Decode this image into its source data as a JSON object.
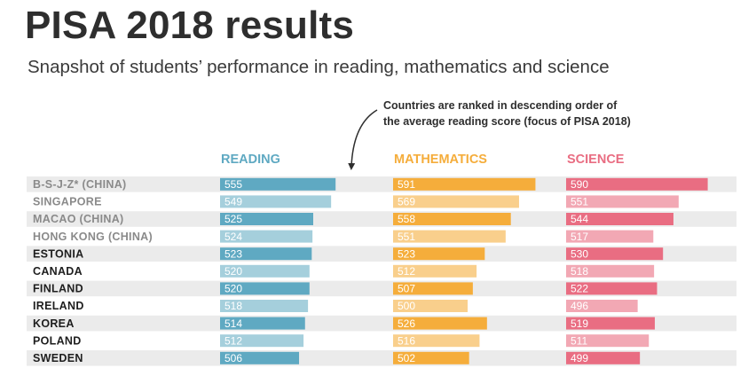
{
  "header": {
    "title": "PISA 2018 results",
    "subtitle": "Snapshot of students’ performance in reading, mathematics and science"
  },
  "annotation": {
    "line1": "Countries are ranked in descending order of",
    "line2": "the average reading score (focus of PISA 2018)"
  },
  "colors": {
    "reading": "#5fa9c2",
    "reading_light": "#a5cfdc",
    "mathematics": "#f5ad3b",
    "mathematics_light": "#f9cf8c",
    "science": "#e96d82",
    "science_light": "#f2a8b4",
    "country_dark": "#1e1e1e",
    "country_gray": "#8a8a8a",
    "row_band": "#ebebeb"
  },
  "chart_data": {
    "type": "bar",
    "orientation": "horizontal",
    "categories": [
      "B-S-J-Z* (CHINA)",
      "SINGAPORE",
      "MACAO (CHINA)",
      "HONG KONG (CHINA)",
      "ESTONIA",
      "CANADA",
      "FINLAND",
      "IRELAND",
      "KOREA",
      "POLAND",
      "SWEDEN"
    ],
    "category_style": [
      "gray",
      "gray",
      "gray",
      "gray",
      "dark",
      "dark",
      "dark",
      "dark",
      "dark",
      "dark",
      "dark"
    ],
    "series": [
      {
        "name": "READING",
        "values": [
          555,
          549,
          525,
          524,
          523,
          520,
          520,
          518,
          514,
          512,
          506
        ]
      },
      {
        "name": "MATHEMATICS",
        "values": [
          591,
          569,
          558,
          551,
          523,
          512,
          507,
          500,
          526,
          516,
          502
        ]
      },
      {
        "name": "SCIENCE",
        "values": [
          590,
          551,
          544,
          517,
          530,
          518,
          522,
          496,
          519,
          511,
          499
        ]
      }
    ],
    "bar_shading": "alternating dark/light rows",
    "xlim": [
      400,
      600
    ],
    "title": "PISA 2018 results",
    "subtitle": "Snapshot of students’ performance in reading, mathematics and science",
    "legend": "none (series shown as column headers)",
    "grid": false
  }
}
